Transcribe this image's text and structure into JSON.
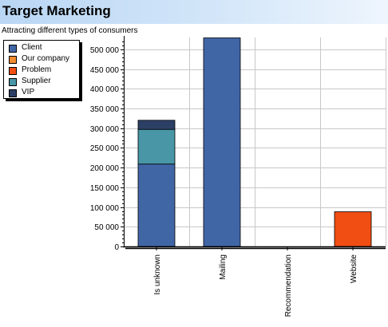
{
  "header": {
    "title": "Target Marketing",
    "subtitle": "Attracting different types of consumers"
  },
  "chart_data": {
    "type": "bar",
    "stacked": true,
    "title": "Target Marketing",
    "subtitle": "Attracting different types of consumers",
    "xlabel": "",
    "ylabel": "",
    "ylim": [
      0,
      530000
    ],
    "y_ticks": [
      0,
      50000,
      100000,
      150000,
      200000,
      250000,
      300000,
      350000,
      400000,
      450000,
      500000
    ],
    "y_tick_labels": [
      "0",
      "50 000",
      "100 000",
      "150 000",
      "200 000",
      "250 000",
      "300 000",
      "350 000",
      "400 000",
      "450 000",
      "500 000"
    ],
    "grid": true,
    "legend_position": "top-left",
    "categories": [
      "Is unknown",
      "Mailing",
      "Recommendation",
      "Website"
    ],
    "series": [
      {
        "name": "Client",
        "color": "#4166a6",
        "values": [
          209000,
          529000,
          0,
          0
        ]
      },
      {
        "name": "Our company",
        "color": "#f28c30",
        "values": [
          0,
          0,
          0,
          0
        ]
      },
      {
        "name": "Problem",
        "color": "#f04e12",
        "values": [
          0,
          0,
          0,
          88000
        ]
      },
      {
        "name": "Supplier",
        "color": "#4896a6",
        "values": [
          88000,
          0,
          0,
          0
        ]
      },
      {
        "name": "VIP",
        "color": "#2c4066",
        "values": [
          23000,
          0,
          0,
          0
        ]
      }
    ]
  }
}
